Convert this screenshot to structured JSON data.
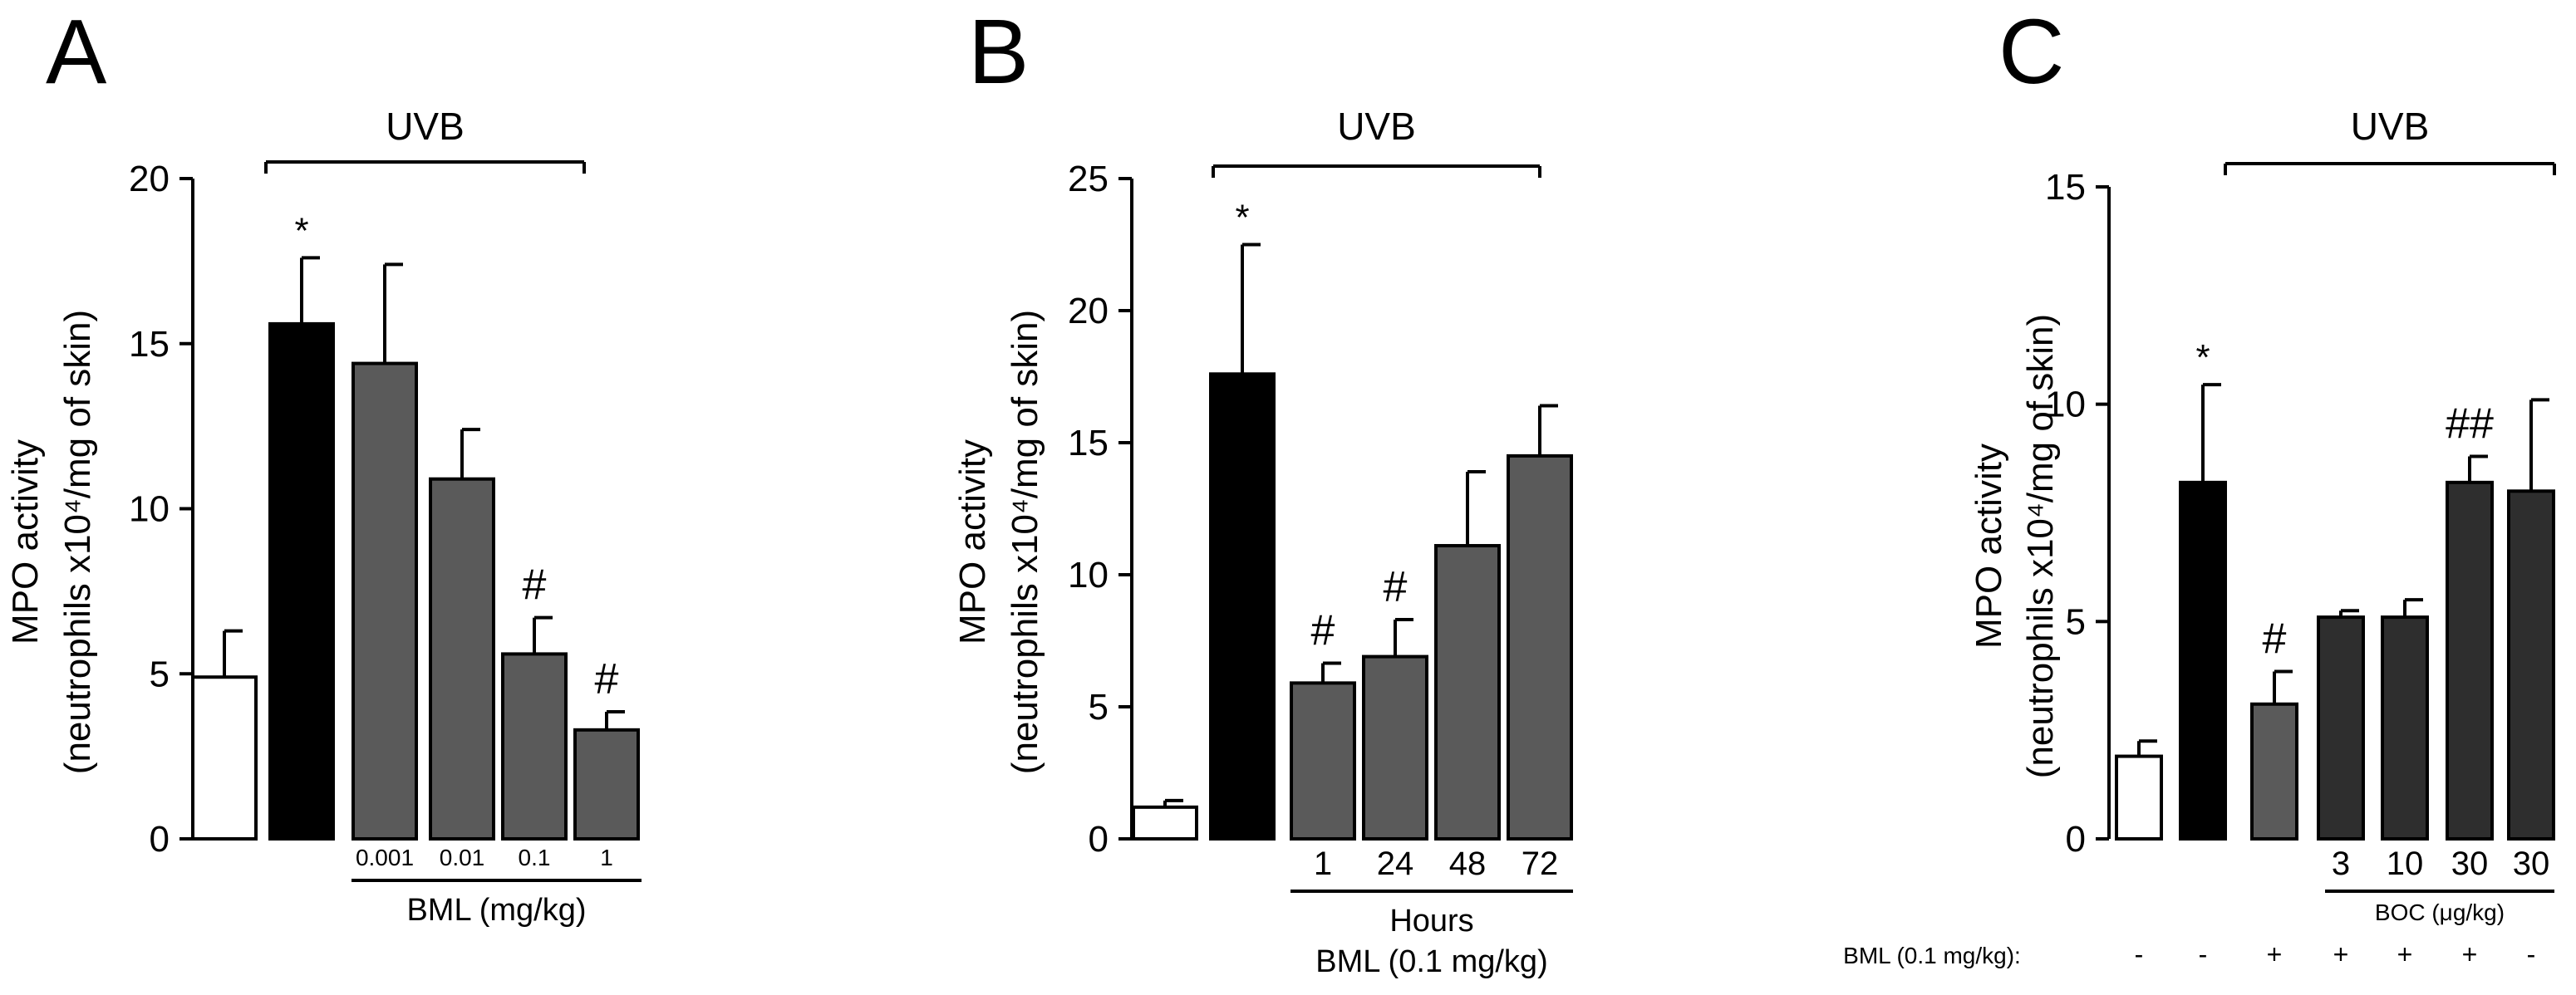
{
  "chart_data": [
    {
      "panel_letter": "A",
      "type": "bar",
      "bracket_label": "UVB",
      "ylabel_line1": "MPO activity",
      "ylabel_line2": "(neutrophils x10⁴/mg of skin)",
      "ylim": [
        0,
        20
      ],
      "yticks": [
        "0",
        "5",
        "10",
        "15",
        "20"
      ],
      "categories": [
        "",
        "",
        "0.001",
        "0.01",
        "0.1",
        "1"
      ],
      "values": [
        4.9,
        15.6,
        14.4,
        10.9,
        5.6,
        3.3
      ],
      "errors": [
        1.4,
        2.0,
        3.0,
        1.5,
        1.1,
        0.55
      ],
      "colors": [
        "#ffffff",
        "#000000",
        "#5a5a5a",
        "#5a5a5a",
        "#5a5a5a",
        "#5a5a5a"
      ],
      "annotations": [
        "",
        "*",
        "",
        "",
        "#",
        "#"
      ],
      "group_label": "BML (mg/kg)",
      "grid": false
    },
    {
      "panel_letter": "B",
      "type": "bar",
      "bracket_label": "UVB",
      "ylabel_line1": "MPO activity",
      "ylabel_line2": "(neutrophils x10⁴/mg of skin)",
      "ylim": [
        0,
        25
      ],
      "yticks": [
        "0",
        "5",
        "10",
        "15",
        "20",
        "25"
      ],
      "categories": [
        "",
        "",
        "1",
        "24",
        "48",
        "72"
      ],
      "values": [
        1.2,
        17.6,
        5.9,
        6.9,
        11.1,
        14.5
      ],
      "errors": [
        0.25,
        4.9,
        0.75,
        1.4,
        2.8,
        1.9
      ],
      "colors": [
        "#ffffff",
        "#000000",
        "#5a5a5a",
        "#5a5a5a",
        "#5a5a5a",
        "#5a5a5a"
      ],
      "annotations": [
        "",
        "*",
        "#",
        "#",
        "",
        ""
      ],
      "group_label": "Hours",
      "group_label2": "BML (0.1 mg/kg)",
      "grid": false
    },
    {
      "panel_letter": "C",
      "type": "bar",
      "bracket_label": "UVB",
      "ylabel_line1": "MPO activity",
      "ylabel_line2": "(neutrophils x10⁴/mg of skin)",
      "ylim": [
        0,
        15
      ],
      "yticks": [
        "0",
        "5",
        "10",
        "15"
      ],
      "categories": [
        "",
        "",
        "",
        "3",
        "10",
        "30",
        "30"
      ],
      "values": [
        1.9,
        8.2,
        3.1,
        5.1,
        5.1,
        8.2,
        8.0
      ],
      "errors": [
        0.35,
        2.25,
        0.75,
        0.15,
        0.4,
        0.6,
        2.1
      ],
      "colors": [
        "#ffffff",
        "#000000",
        "#5a5a5a",
        "#2e2e2e",
        "#2e2e2e",
        "#2e2e2e",
        "#2e2e2e"
      ],
      "annotations": [
        "",
        "*",
        "#",
        "",
        "",
        "##",
        ""
      ],
      "group_label": "BOC (μg/kg)",
      "row_label": "BML  (0.1 mg/kg):",
      "row_signs": [
        "-",
        "-",
        "+",
        "+",
        "+",
        "+",
        "-"
      ],
      "grid": false
    }
  ]
}
